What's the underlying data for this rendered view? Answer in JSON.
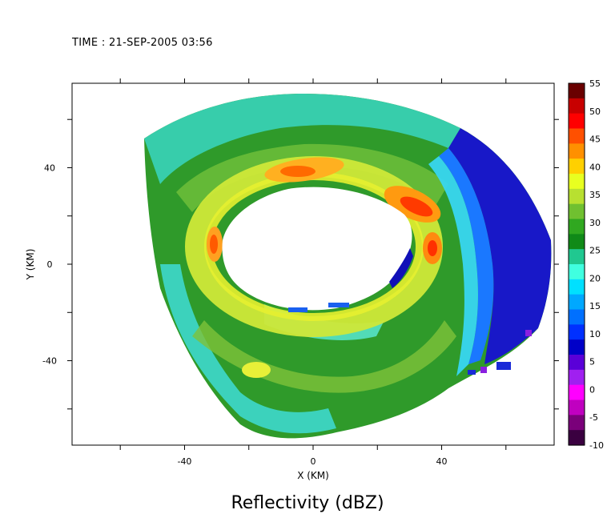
{
  "header": {
    "time": "TIME : 21-SEP-2005 03:56"
  },
  "chart_data": {
    "type": "heatmap",
    "title": "Reflectivity (dBZ)",
    "xlabel": "X (KM)",
    "ylabel": "Y (KM)",
    "xlim": [
      -75,
      75
    ],
    "ylim": [
      -75,
      75
    ],
    "x_ticks": [
      -40,
      0,
      40
    ],
    "y_ticks": [
      40,
      0,
      -40
    ],
    "colorbar": {
      "label": "dBZ",
      "range": [
        -10,
        55
      ],
      "tick_labels": [
        "55",
        "50",
        "45",
        "40",
        "35",
        "30",
        "25",
        "20",
        "15",
        "10",
        "5",
        "0",
        "-5",
        "-10"
      ],
      "colors": [
        "#3a0040",
        "#7a007a",
        "#c000c0",
        "#ff00ff",
        "#a020f0",
        "#5a00d8",
        "#0000c8",
        "#0030ff",
        "#0070ff",
        "#00a8ff",
        "#00e0ff",
        "#40ffe0",
        "#20c890",
        "#108a18",
        "#30a820",
        "#70c030",
        "#b8e030",
        "#e8ff20",
        "#ffd000",
        "#ff9000",
        "#ff5000",
        "#ff0000",
        "#c80000",
        "#6a0000"
      ]
    },
    "grid": false,
    "features": {
      "eye": "clear eye near center (no echo)",
      "max_reflectivity_region": "eyewall east-northeast of eye, about 45-50 dBZ",
      "low_reflectivity_region": "eastern edge, about 10-20 dBZ"
    }
  }
}
